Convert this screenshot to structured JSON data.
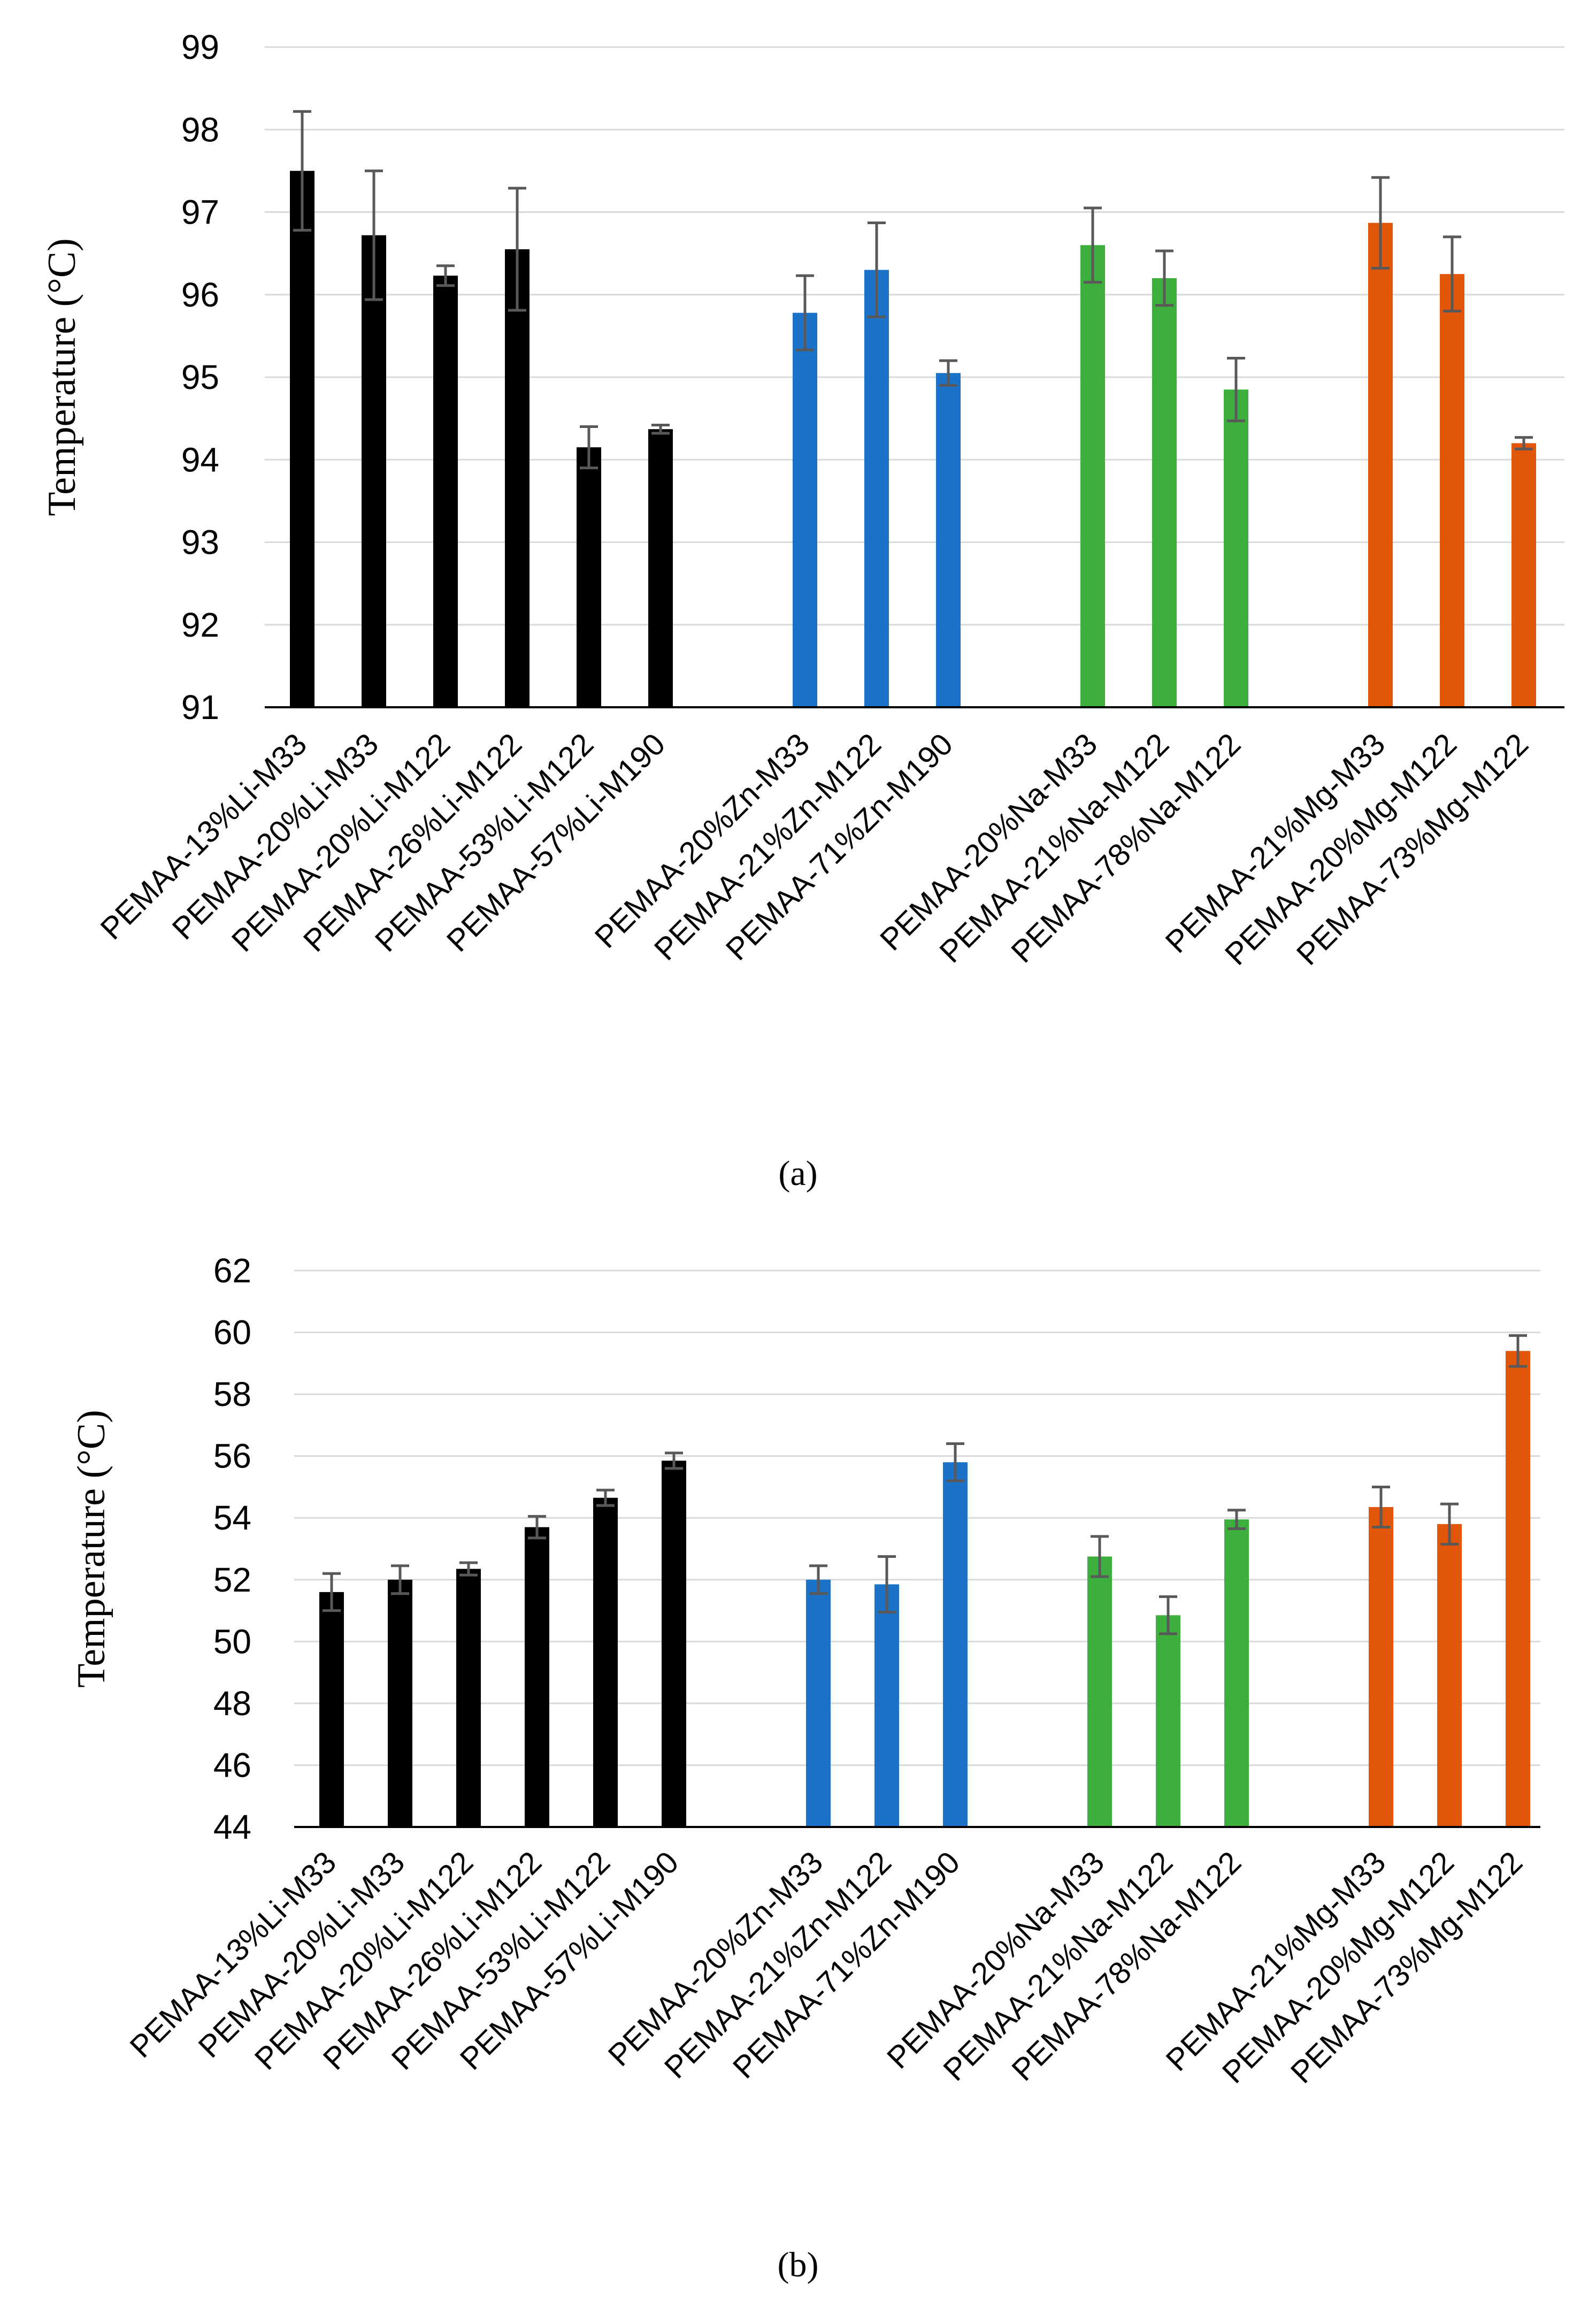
{
  "colors": {
    "Li": "#000000",
    "Zn": "#1a73c8",
    "Na": "#3daf3d",
    "Mg": "#e2560a",
    "error_bar": "#595959",
    "grid": "#d9d9d9"
  },
  "chart_data": [
    {
      "type": "bar",
      "panel_label": "(a)",
      "ylabel": "Temperature (°C)",
      "ylim": [
        91,
        99
      ],
      "yticks": [
        91,
        92,
        93,
        94,
        95,
        96,
        97,
        98,
        99
      ],
      "grid": true,
      "groups": [
        {
          "color_key": "Li",
          "bars": [
            {
              "label": "PEMAA-13%Li-M33",
              "value": 97.5,
              "error": 0.72
            },
            {
              "label": "PEMAA-20%Li-M33",
              "value": 96.72,
              "error": 0.78
            },
            {
              "label": "PEMAA-20%Li-M122",
              "value": 96.23,
              "error": 0.12
            },
            {
              "label": "PEMAA-26%Li-M122",
              "value": 96.55,
              "error": 0.74
            },
            {
              "label": "PEMAA-53%Li-M122",
              "value": 94.15,
              "error": 0.25
            },
            {
              "label": "PEMAA-57%Li-M190",
              "value": 94.37,
              "error": 0.05
            }
          ]
        },
        {
          "color_key": "Zn",
          "bars": [
            {
              "label": "PEMAA-20%Zn-M33",
              "value": 95.78,
              "error": 0.45
            },
            {
              "label": "PEMAA-21%Zn-M122",
              "value": 96.3,
              "error": 0.57
            },
            {
              "label": "PEMAA-71%Zn-M190",
              "value": 95.05,
              "error": 0.15
            }
          ]
        },
        {
          "color_key": "Na",
          "bars": [
            {
              "label": "PEMAA-20%Na-M33",
              "value": 96.6,
              "error": 0.45
            },
            {
              "label": "PEMAA-21%Na-M122",
              "value": 96.2,
              "error": 0.33
            },
            {
              "label": "PEMAA-78%Na-M122",
              "value": 94.85,
              "error": 0.38
            }
          ]
        },
        {
          "color_key": "Mg",
          "bars": [
            {
              "label": "PEMAA-21%Mg-M33",
              "value": 96.87,
              "error": 0.55
            },
            {
              "label": "PEMAA-20%Mg-M122",
              "value": 96.25,
              "error": 0.45
            },
            {
              "label": "PEMAA-73%Mg-M122",
              "value": 94.2,
              "error": 0.07
            }
          ]
        }
      ]
    },
    {
      "type": "bar",
      "panel_label": "(b)",
      "ylabel": "Temperature (°C)",
      "ylim": [
        44,
        62
      ],
      "yticks": [
        44,
        46,
        48,
        50,
        52,
        54,
        56,
        58,
        60,
        62
      ],
      "grid": true,
      "groups": [
        {
          "color_key": "Li",
          "bars": [
            {
              "label": "PEMAA-13%Li-M33",
              "value": 51.6,
              "error": 0.6
            },
            {
              "label": "PEMAA-20%Li-M33",
              "value": 52.0,
              "error": 0.45
            },
            {
              "label": "PEMAA-20%Li-M122",
              "value": 52.35,
              "error": 0.2
            },
            {
              "label": "PEMAA-26%Li-M122",
              "value": 53.7,
              "error": 0.35
            },
            {
              "label": "PEMAA-53%Li-M122",
              "value": 54.65,
              "error": 0.25
            },
            {
              "label": "PEMAA-57%Li-M190",
              "value": 55.85,
              "error": 0.25
            }
          ]
        },
        {
          "color_key": "Zn",
          "bars": [
            {
              "label": "PEMAA-20%Zn-M33",
              "value": 52.0,
              "error": 0.45
            },
            {
              "label": "PEMAA-21%Zn-M122",
              "value": 51.85,
              "error": 0.9
            },
            {
              "label": "PEMAA-71%Zn-M190",
              "value": 55.8,
              "error": 0.6
            }
          ]
        },
        {
          "color_key": "Na",
          "bars": [
            {
              "label": "PEMAA-20%Na-M33",
              "value": 52.75,
              "error": 0.65
            },
            {
              "label": "PEMAA-21%Na-M122",
              "value": 50.85,
              "error": 0.6
            },
            {
              "label": "PEMAA-78%Na-M122",
              "value": 53.95,
              "error": 0.3
            }
          ]
        },
        {
          "color_key": "Mg",
          "bars": [
            {
              "label": "PEMAA-21%Mg-M33",
              "value": 54.35,
              "error": 0.65
            },
            {
              "label": "PEMAA-20%Mg-M122",
              "value": 53.8,
              "error": 0.65
            },
            {
              "label": "PEMAA-73%Mg-M122",
              "value": 59.4,
              "error": 0.5
            }
          ]
        }
      ]
    }
  ]
}
